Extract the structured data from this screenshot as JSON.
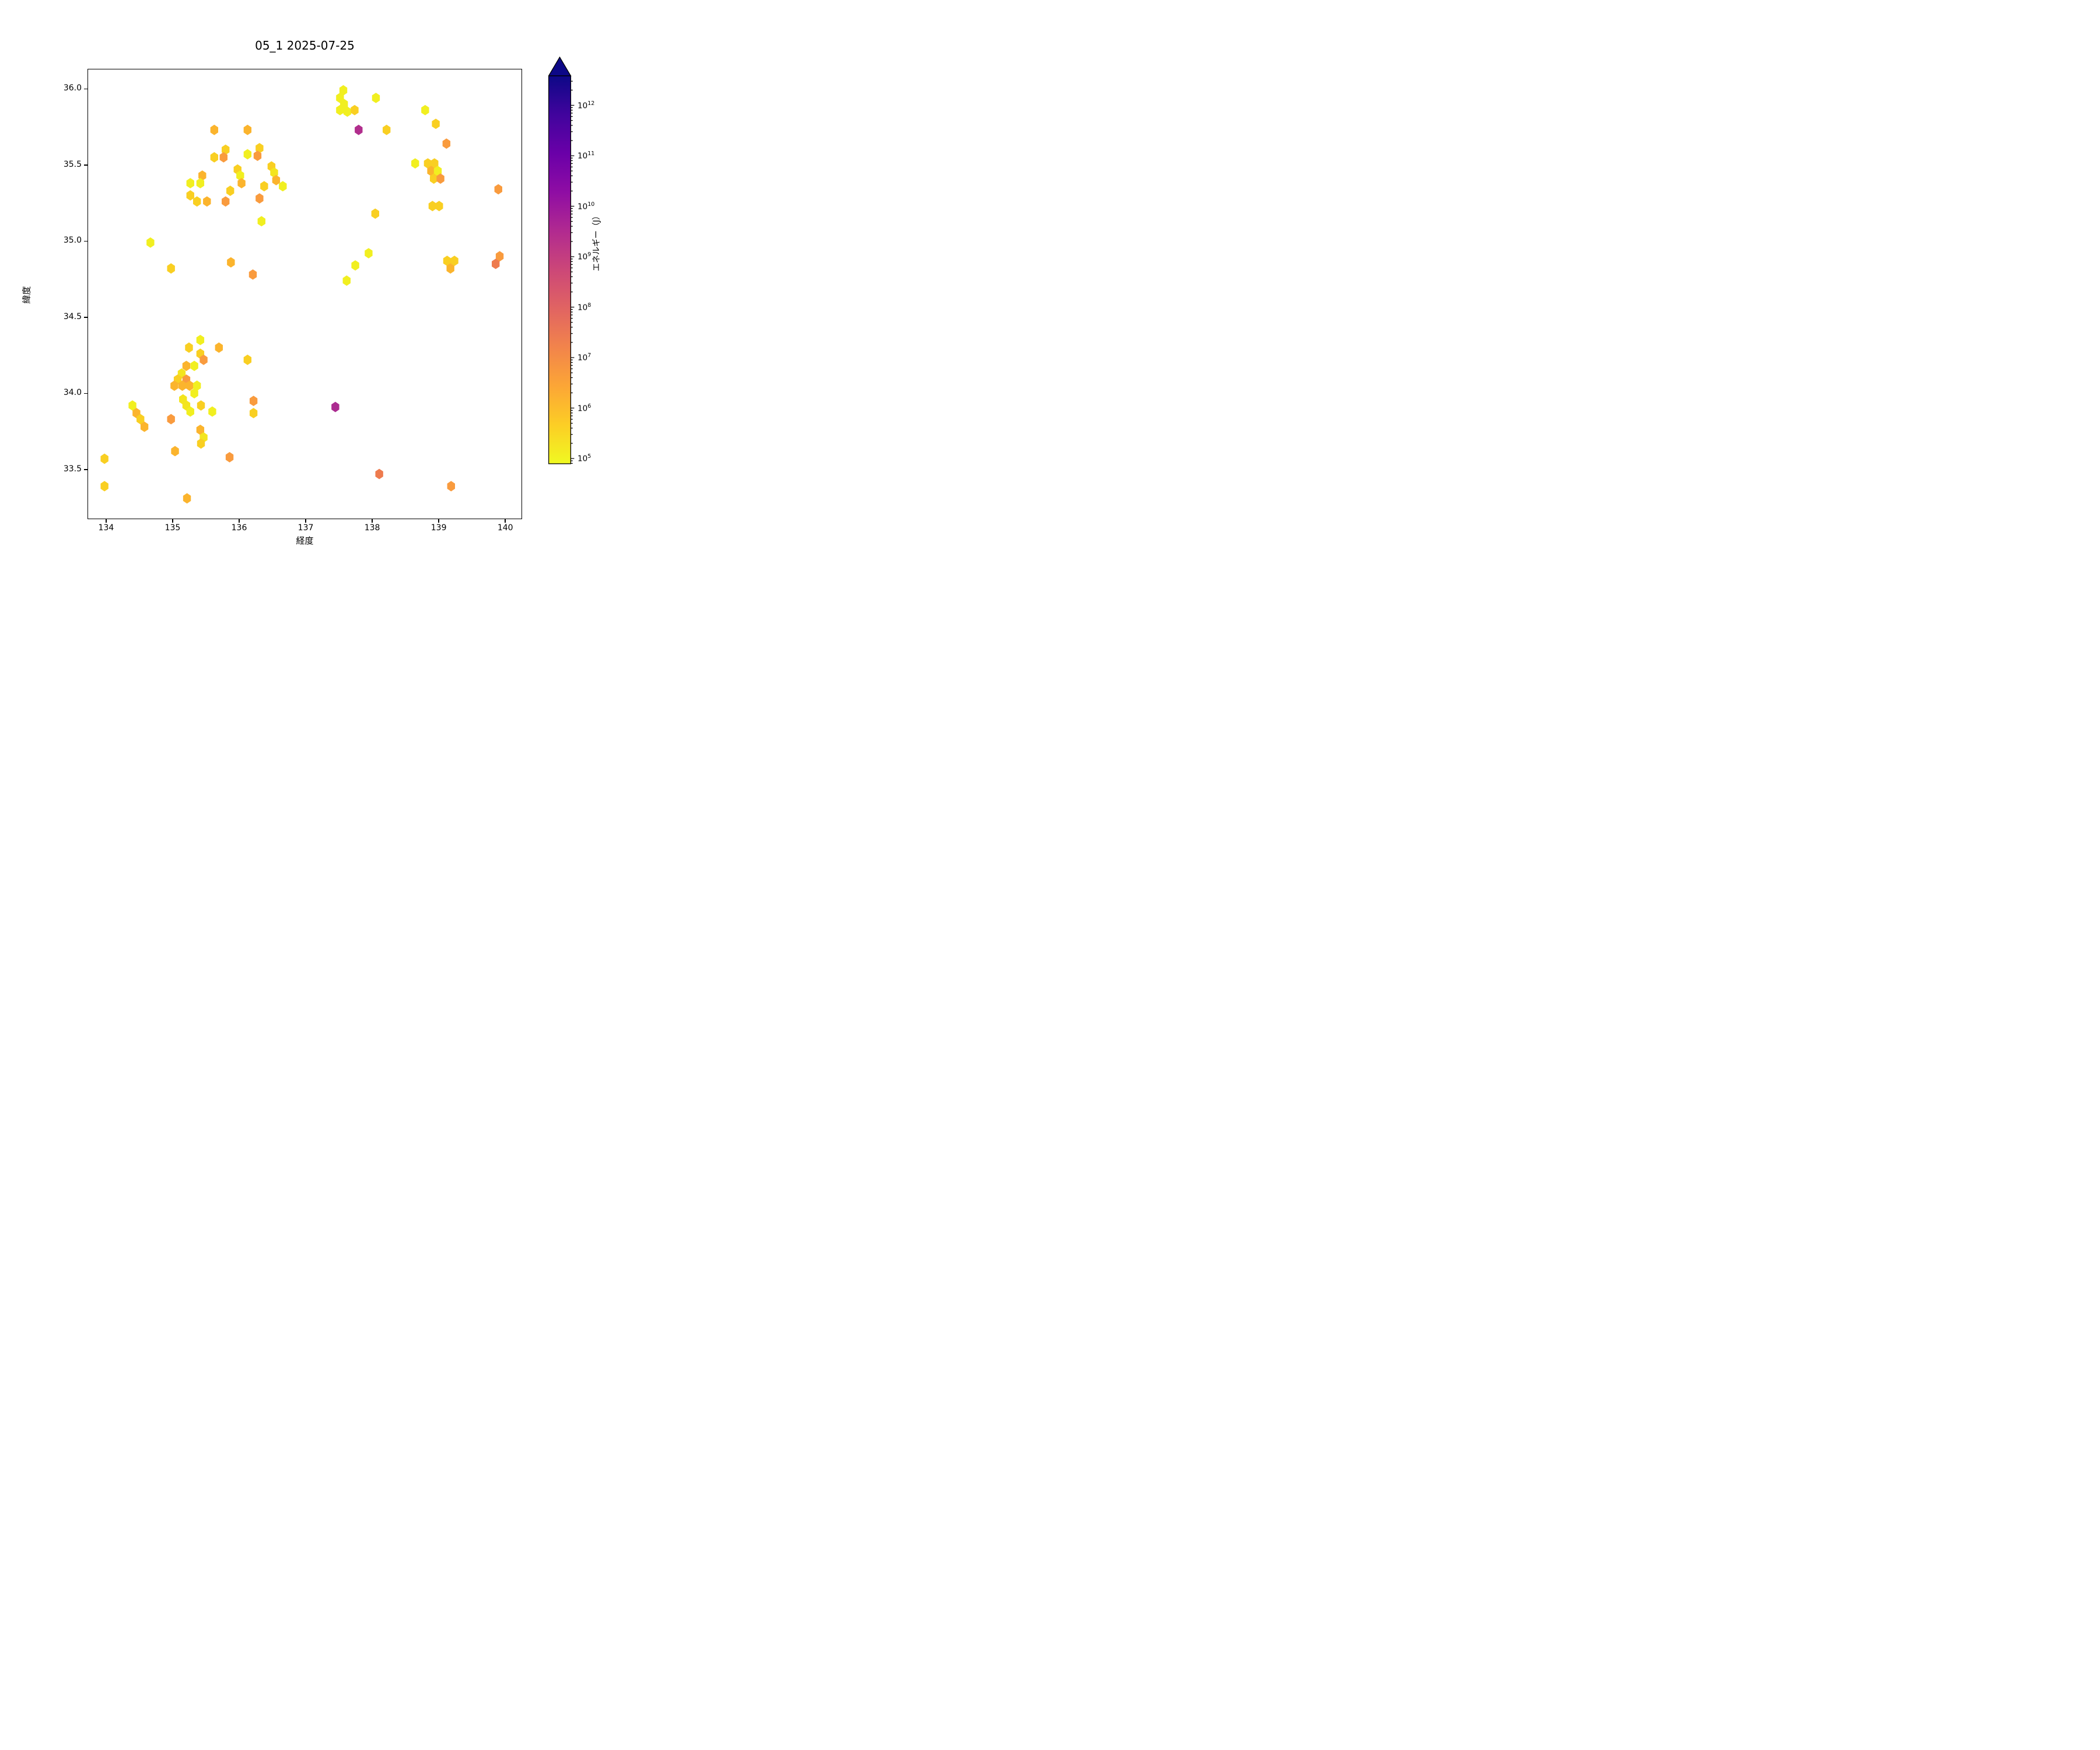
{
  "title": "05_1 2025-07-25",
  "chart_data": {
    "type": "scatter",
    "subtype": "hexbin-map",
    "title": "05_1 2025-07-25",
    "xlabel": "経度",
    "ylabel": "緯度",
    "xlim": [
      133.72,
      140.25
    ],
    "ylim": [
      33.174,
      36.133
    ],
    "x_ticks": [
      134,
      135,
      136,
      137,
      138,
      139,
      140
    ],
    "y_ticks": [
      33.5,
      34.0,
      34.5,
      35.0,
      35.5,
      36.0
    ],
    "grid": false,
    "legend_position": "none",
    "marker": "hexagon",
    "colormap": "plasma_r",
    "colorbar": {
      "label": "エネルギー（J）",
      "scale": "log",
      "tick_exponents": [
        5,
        6,
        7,
        8,
        9,
        10,
        11,
        12
      ],
      "range_exponents": [
        4.89,
        12.59
      ],
      "extend": "max",
      "gradient_bottom_to_top": [
        "#f0f921",
        "#fcce25",
        "#fca636",
        "#f2844b",
        "#e16462",
        "#cc4778",
        "#b12a90",
        "#8f0da4",
        "#6a00a8",
        "#41049d",
        "#0d0887"
      ],
      "arrow_color": "#0d0887"
    },
    "point_fields": [
      "lon",
      "lat",
      "color",
      "energy_J"
    ],
    "points": [
      [
        137.57,
        35.99,
        "#f1ef20",
        90000
      ],
      [
        137.52,
        35.94,
        "#f1ef20",
        110000
      ],
      [
        137.58,
        35.9,
        "#f1ef20",
        100000
      ],
      [
        137.52,
        35.86,
        "#f1ef20",
        90000
      ],
      [
        137.63,
        35.85,
        "#f1ef20",
        120000
      ],
      [
        137.74,
        35.86,
        "#f9cf22",
        600000
      ],
      [
        138.06,
        35.94,
        "#f1ef20",
        130000
      ],
      [
        137.8,
        35.73,
        "#b12e8d",
        2500000000
      ],
      [
        138.22,
        35.73,
        "#f9cf22",
        800000
      ],
      [
        138.8,
        35.86,
        "#f1ef20",
        150000
      ],
      [
        138.96,
        35.77,
        "#f9cf22",
        700000
      ],
      [
        139.12,
        35.64,
        "#f99b3e",
        12000000
      ],
      [
        138.65,
        35.51,
        "#f1ef20",
        140000
      ],
      [
        138.84,
        35.51,
        "#f9cf22",
        600000
      ],
      [
        138.94,
        35.51,
        "#f9cf22",
        700000
      ],
      [
        138.89,
        35.46,
        "#fbb42d",
        3000000
      ],
      [
        138.99,
        35.46,
        "#f1ef20",
        160000
      ],
      [
        138.93,
        35.41,
        "#f9cf22",
        800000
      ],
      [
        139.03,
        35.41,
        "#f99b3e",
        15000000
      ],
      [
        139.9,
        35.34,
        "#f99b3e",
        18000000
      ],
      [
        138.91,
        35.23,
        "#f9cf22",
        600000
      ],
      [
        139.01,
        35.23,
        "#f9cf22",
        600000
      ],
      [
        138.05,
        35.18,
        "#f9cf22",
        700000
      ],
      [
        135.63,
        35.73,
        "#fbb42d",
        2800000
      ],
      [
        136.13,
        35.73,
        "#fbb42d",
        3200000
      ],
      [
        135.8,
        35.6,
        "#f9cf22",
        700000
      ],
      [
        135.77,
        35.55,
        "#f99b3e",
        11000000
      ],
      [
        135.63,
        35.55,
        "#f9cf22",
        800000
      ],
      [
        136.31,
        35.61,
        "#f9cf22",
        600000
      ],
      [
        136.28,
        35.56,
        "#f99b3e",
        13000000
      ],
      [
        136.13,
        35.57,
        "#f1ef20",
        120000
      ],
      [
        135.98,
        35.47,
        "#f9cf22",
        600000
      ],
      [
        136.02,
        35.43,
        "#f1ef20",
        180000
      ],
      [
        136.04,
        35.38,
        "#fbb42d",
        2600000
      ],
      [
        135.87,
        35.33,
        "#f9cf22",
        500000
      ],
      [
        135.45,
        35.43,
        "#fbb42d",
        3500000
      ],
      [
        135.42,
        35.38,
        "#f1ef20",
        100000
      ],
      [
        135.27,
        35.38,
        "#f1ef20",
        130000
      ],
      [
        135.27,
        35.3,
        "#f9cf22",
        700000
      ],
      [
        135.37,
        35.26,
        "#f9cf22",
        800000
      ],
      [
        135.52,
        35.26,
        "#fbb42d",
        2900000
      ],
      [
        135.8,
        35.26,
        "#f99b3e",
        14000000
      ],
      [
        136.49,
        35.49,
        "#f9cf22",
        600000
      ],
      [
        136.53,
        35.45,
        "#f3e51e",
        220000
      ],
      [
        136.56,
        35.4,
        "#fbb42d",
        3100000
      ],
      [
        136.38,
        35.36,
        "#f9cf22",
        700000
      ],
      [
        136.66,
        35.36,
        "#f1ef20",
        110000
      ],
      [
        136.31,
        35.28,
        "#f99b3e",
        16000000
      ],
      [
        136.34,
        35.13,
        "#f1ef20",
        120000
      ],
      [
        137.95,
        34.92,
        "#f1ef20",
        100000
      ],
      [
        137.75,
        34.84,
        "#f1ef20",
        130000
      ],
      [
        137.62,
        34.74,
        "#f1ef20",
        110000
      ],
      [
        139.92,
        34.9,
        "#f99b3e",
        17000000
      ],
      [
        139.86,
        34.85,
        "#ee7b4e",
        90000000
      ],
      [
        139.13,
        34.87,
        "#f9cf22",
        700000
      ],
      [
        139.24,
        34.87,
        "#f9cf22",
        800000
      ],
      [
        139.18,
        34.82,
        "#fbb42d",
        3300000
      ],
      [
        134.67,
        34.99,
        "#f1ef20",
        120000
      ],
      [
        134.98,
        34.82,
        "#f9cf22",
        600000
      ],
      [
        135.88,
        34.86,
        "#fbb42d",
        2700000
      ],
      [
        136.21,
        34.78,
        "#f99b3e",
        12000000
      ],
      [
        135.42,
        34.35,
        "#f1ef20",
        140000
      ],
      [
        135.25,
        34.3,
        "#f9cf22",
        700000
      ],
      [
        135.7,
        34.3,
        "#fbb42d",
        3000000
      ],
      [
        135.42,
        34.26,
        "#f9cf22",
        600000
      ],
      [
        135.47,
        34.22,
        "#f99b3e",
        13000000
      ],
      [
        136.13,
        34.22,
        "#f9cf22",
        800000
      ],
      [
        135.21,
        34.18,
        "#fbb42d",
        2500000
      ],
      [
        135.33,
        34.18,
        "#f1ef20",
        150000
      ],
      [
        135.14,
        34.13,
        "#f3e51e",
        200000
      ],
      [
        135.08,
        34.09,
        "#f9cf22",
        600000
      ],
      [
        135.21,
        34.09,
        "#f99b3e",
        18000000
      ],
      [
        135.03,
        34.05,
        "#fbb42d",
        3400000
      ],
      [
        135.15,
        34.05,
        "#fbb42d",
        2800000
      ],
      [
        135.26,
        34.05,
        "#fbb42d",
        3100000
      ],
      [
        135.37,
        34.05,
        "#f1ef20",
        120000
      ],
      [
        135.33,
        34.0,
        "#f1ef20",
        100000
      ],
      [
        135.16,
        33.96,
        "#f3e51e",
        210000
      ],
      [
        135.21,
        33.92,
        "#f3e51e",
        190000
      ],
      [
        135.43,
        33.92,
        "#f9cf22",
        700000
      ],
      [
        135.6,
        33.88,
        "#f1ef20",
        130000
      ],
      [
        135.27,
        33.88,
        "#f1ef20",
        110000
      ],
      [
        136.22,
        33.95,
        "#f99b3e",
        14000000
      ],
      [
        136.22,
        33.87,
        "#f9cf22",
        800000
      ],
      [
        134.4,
        33.92,
        "#f1ef20",
        120000
      ],
      [
        134.46,
        33.87,
        "#fbb42d",
        2600000
      ],
      [
        134.52,
        33.83,
        "#f9cf22",
        700000
      ],
      [
        134.58,
        33.78,
        "#fbb42d",
        3200000
      ],
      [
        134.98,
        33.83,
        "#f99b3e",
        20000000
      ],
      [
        135.42,
        33.76,
        "#fbb42d",
        2900000
      ],
      [
        135.47,
        33.71,
        "#f3e51e",
        230000
      ],
      [
        135.43,
        33.67,
        "#f9cf22",
        600000
      ],
      [
        135.04,
        33.62,
        "#fbb42d",
        3000000
      ],
      [
        135.86,
        33.58,
        "#f99b3e",
        15000000
      ],
      [
        133.98,
        33.57,
        "#f9cf22",
        800000
      ],
      [
        133.98,
        33.39,
        "#f9cf22",
        700000
      ],
      [
        135.22,
        33.31,
        "#fbb42d",
        2700000
      ],
      [
        137.45,
        33.91,
        "#ab2b90",
        1800000000
      ],
      [
        138.11,
        33.47,
        "#ee7b4e",
        120000000
      ],
      [
        139.19,
        33.39,
        "#f99b3e",
        16000000
      ]
    ]
  }
}
